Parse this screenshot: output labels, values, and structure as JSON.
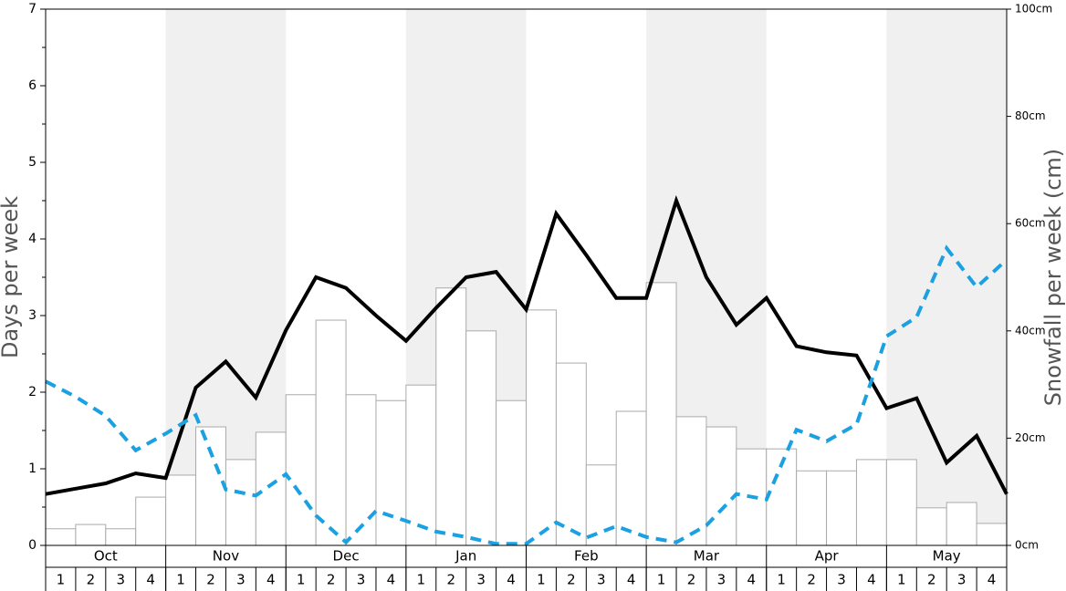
{
  "chart_data": {
    "type": "bar",
    "y_label": "Days per week",
    "y2_label": "Snowfall per week (cm)",
    "months": [
      "Oct",
      "Nov",
      "Dec",
      "Jan",
      "Feb",
      "Mar",
      "Apr",
      "May"
    ],
    "categories": [
      "1",
      "2",
      "3",
      "4",
      "1",
      "2",
      "3",
      "4",
      "1",
      "2",
      "3",
      "4",
      "1",
      "2",
      "3",
      "4",
      "1",
      "2",
      "3",
      "4",
      "1",
      "2",
      "3",
      "4",
      "1",
      "2",
      "3",
      "4",
      "1",
      "2",
      "3",
      "4"
    ],
    "xlim": [
      0,
      32
    ],
    "ylim": [
      0,
      7
    ],
    "yticks": [
      0,
      1,
      2,
      3,
      4,
      5,
      6,
      7
    ],
    "y2lim": [
      0,
      100
    ],
    "y2ticks": [
      {
        "value": 0,
        "label": "0cm"
      },
      {
        "value": 20,
        "label": "20cm"
      },
      {
        "value": 40,
        "label": "40cm"
      },
      {
        "value": 60,
        "label": "60cm"
      },
      {
        "value": 80,
        "label": "80cm"
      },
      {
        "value": 100,
        "label": "100cm"
      }
    ],
    "series": [
      {
        "type": "bar",
        "axis": "y2",
        "color": "#ffffff",
        "edge_color": "#aaaaaa",
        "values": [
          3.1,
          3.9,
          3.1,
          9.0,
          13.1,
          22.1,
          16.0,
          21.1,
          28.1,
          42.0,
          28.1,
          27.0,
          29.9,
          48.0,
          40.0,
          27.0,
          43.9,
          34.0,
          15.0,
          25.0,
          49.0,
          24.0,
          22.1,
          18.0,
          18.0,
          13.9,
          13.9,
          16.0,
          16.0,
          7.0,
          8.0,
          4.1
        ]
      },
      {
        "type": "line",
        "color": "#000000",
        "dashed": false,
        "x": [
          0,
          1,
          2,
          3,
          4,
          5,
          6,
          7,
          8,
          9,
          10,
          11,
          12,
          13,
          14,
          15,
          16,
          17,
          18,
          19,
          20,
          21,
          22,
          23,
          24,
          25,
          26,
          27,
          28,
          29,
          30,
          31,
          32
        ],
        "values": [
          0.67,
          0.74,
          0.81,
          0.94,
          0.88,
          2.06,
          2.4,
          1.93,
          2.81,
          3.5,
          3.36,
          3.0,
          2.67,
          3.1,
          3.5,
          3.57,
          3.08,
          4.33,
          3.79,
          3.23,
          3.23,
          4.5,
          3.5,
          2.88,
          3.23,
          2.6,
          2.52,
          2.48,
          1.79,
          1.92,
          1.08,
          1.43,
          0.67
        ]
      },
      {
        "type": "line",
        "color": "#1ba1e2",
        "dashed": true,
        "x": [
          0,
          1,
          2,
          3,
          4,
          5,
          6,
          7,
          8,
          9,
          10,
          11,
          12,
          13,
          14,
          15,
          16,
          17,
          18,
          19,
          20,
          21,
          22,
          23,
          24,
          25,
          26,
          27,
          28,
          29,
          30,
          31,
          32
        ],
        "values": [
          2.14,
          1.94,
          1.69,
          1.24,
          1.46,
          1.7,
          0.73,
          0.65,
          0.93,
          0.39,
          0.04,
          0.45,
          0.32,
          0.18,
          0.11,
          0.02,
          0.02,
          0.3,
          0.1,
          0.25,
          0.11,
          0.04,
          0.26,
          0.67,
          0.6,
          1.51,
          1.36,
          1.58,
          2.73,
          2.98,
          3.88,
          3.37,
          3.73
        ]
      }
    ]
  }
}
